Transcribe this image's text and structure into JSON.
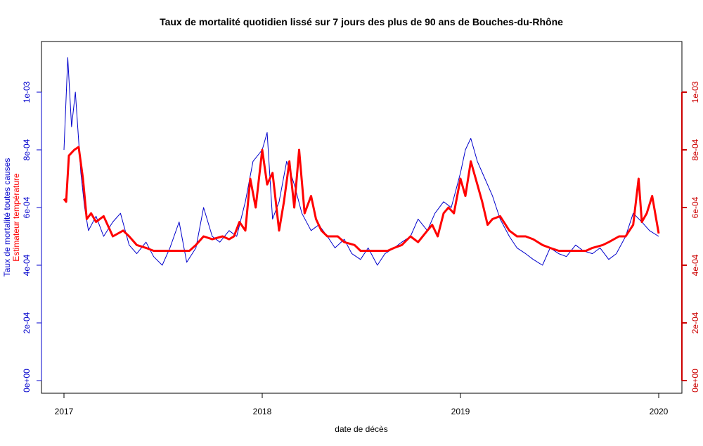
{
  "chart_data": {
    "type": "line",
    "title": "Taux de mortalité quotidien lissé sur 7 jours des plus de 90 ans de Bouches-du-Rhône",
    "xlabel": "date de décès",
    "ylabel_left_line1": "Taux de mortalité toutes causes",
    "ylabel_left_line2": "Estimateur température",
    "x_ticks": [
      "2017",
      "2018",
      "2019",
      "2020"
    ],
    "y_ticks_left": [
      "0e+00",
      "2e-04",
      "4e-04",
      "6e-04",
      "8e-04",
      "1e-03"
    ],
    "y_ticks_right": [
      "0e+00",
      "2e-04",
      "4e-04",
      "6e-04",
      "8e-04",
      "1e-03"
    ],
    "xlim": [
      "2017-01-01",
      "2020-01-01"
    ],
    "ylim": [
      0,
      0.00113
    ],
    "colors": {
      "mortality": "#0000cc",
      "temperature": "#ff0000",
      "axis_left": "#0000cc",
      "axis_right": "#cc0000"
    },
    "series": [
      {
        "key": "mortality",
        "x": [
          "2017-01-01",
          "2017-01-08",
          "2017-01-15",
          "2017-01-22",
          "2017-02-01",
          "2017-02-08",
          "2017-02-15",
          "2017-03-01",
          "2017-03-15",
          "2017-04-01",
          "2017-04-15",
          "2017-05-01",
          "2017-05-15",
          "2017-06-01",
          "2017-06-15",
          "2017-07-01",
          "2017-07-15",
          "2017-08-01",
          "2017-08-15",
          "2017-09-01",
          "2017-09-15",
          "2017-10-01",
          "2017-10-15",
          "2017-11-01",
          "2017-11-15",
          "2017-12-01",
          "2017-12-15",
          "2018-01-01",
          "2018-01-10",
          "2018-01-20",
          "2018-02-01",
          "2018-02-15",
          "2018-03-01",
          "2018-03-15",
          "2018-04-01",
          "2018-04-15",
          "2018-05-01",
          "2018-05-15",
          "2018-06-01",
          "2018-06-15",
          "2018-07-01",
          "2018-07-15",
          "2018-08-01",
          "2018-08-15",
          "2018-09-01",
          "2018-09-15",
          "2018-10-01",
          "2018-10-15",
          "2018-11-01",
          "2018-11-15",
          "2018-12-01",
          "2018-12-15",
          "2019-01-01",
          "2019-01-10",
          "2019-01-20",
          "2019-02-01",
          "2019-02-15",
          "2019-03-01",
          "2019-03-15",
          "2019-04-01",
          "2019-04-15",
          "2019-05-01",
          "2019-05-15",
          "2019-06-01",
          "2019-06-15",
          "2019-07-01",
          "2019-07-15",
          "2019-08-01",
          "2019-08-15",
          "2019-09-01",
          "2019-09-15",
          "2019-10-01",
          "2019-10-15",
          "2019-11-01",
          "2019-11-15",
          "2019-12-01",
          "2019-12-15",
          "2020-01-01"
        ],
        "values": [
          0.0008,
          0.00112,
          0.00088,
          0.001,
          0.00072,
          0.0006,
          0.00052,
          0.00057,
          0.0005,
          0.00055,
          0.00058,
          0.00047,
          0.00044,
          0.00048,
          0.00043,
          0.0004,
          0.00046,
          0.00055,
          0.00041,
          0.00046,
          0.0006,
          0.0005,
          0.00048,
          0.00052,
          0.0005,
          0.00062,
          0.00076,
          0.0008,
          0.00086,
          0.00056,
          0.00062,
          0.00076,
          0.00068,
          0.00058,
          0.00052,
          0.00054,
          0.0005,
          0.00046,
          0.00049,
          0.00044,
          0.00042,
          0.00046,
          0.0004,
          0.00044,
          0.00046,
          0.00048,
          0.0005,
          0.00056,
          0.00052,
          0.00058,
          0.00062,
          0.0006,
          0.00072,
          0.0008,
          0.00084,
          0.00076,
          0.0007,
          0.00064,
          0.00056,
          0.0005,
          0.00046,
          0.00044,
          0.00042,
          0.0004,
          0.00046,
          0.00044,
          0.00043,
          0.00047,
          0.00045,
          0.00044,
          0.00046,
          0.00042,
          0.00044,
          0.0005,
          0.00058,
          0.00055,
          0.00052,
          0.0005
        ]
      },
      {
        "key": "temperature",
        "x": [
          "2017-01-01",
          "2017-01-05",
          "2017-01-10",
          "2017-01-20",
          "2017-01-28",
          "2017-02-05",
          "2017-02-12",
          "2017-02-20",
          "2017-03-01",
          "2017-03-15",
          "2017-04-01",
          "2017-04-20",
          "2017-05-01",
          "2017-05-15",
          "2017-06-01",
          "2017-06-15",
          "2017-07-01",
          "2017-07-20",
          "2017-08-01",
          "2017-08-20",
          "2017-09-01",
          "2017-09-15",
          "2017-10-01",
          "2017-10-20",
          "2017-11-01",
          "2017-11-10",
          "2017-11-20",
          "2017-12-01",
          "2017-12-10",
          "2017-12-20",
          "2018-01-01",
          "2018-01-10",
          "2018-01-20",
          "2018-02-01",
          "2018-02-10",
          "2018-02-20",
          "2018-03-01",
          "2018-03-10",
          "2018-03-20",
          "2018-04-01",
          "2018-04-10",
          "2018-04-20",
          "2018-05-01",
          "2018-05-20",
          "2018-06-01",
          "2018-06-20",
          "2018-07-01",
          "2018-07-20",
          "2018-08-01",
          "2018-08-20",
          "2018-09-01",
          "2018-09-15",
          "2018-10-01",
          "2018-10-15",
          "2018-11-01",
          "2018-11-10",
          "2018-11-20",
          "2018-12-01",
          "2018-12-10",
          "2018-12-20",
          "2019-01-01",
          "2019-01-10",
          "2019-01-20",
          "2019-02-01",
          "2019-02-10",
          "2019-02-20",
          "2019-03-01",
          "2019-03-15",
          "2019-04-01",
          "2019-04-15",
          "2019-05-01",
          "2019-05-15",
          "2019-06-01",
          "2019-06-15",
          "2019-07-01",
          "2019-07-20",
          "2019-08-01",
          "2019-08-20",
          "2019-09-01",
          "2019-09-20",
          "2019-10-01",
          "2019-10-20",
          "2019-11-01",
          "2019-11-15",
          "2019-11-25",
          "2019-12-01",
          "2019-12-10",
          "2019-12-20",
          "2020-01-01"
        ],
        "values": [
          0.00063,
          0.00062,
          0.00078,
          0.0008,
          0.00081,
          0.0007,
          0.00056,
          0.00058,
          0.00055,
          0.00057,
          0.0005,
          0.00052,
          0.0005,
          0.00047,
          0.00046,
          0.00045,
          0.00045,
          0.00045,
          0.00045,
          0.00045,
          0.00047,
          0.0005,
          0.00049,
          0.0005,
          0.00049,
          0.0005,
          0.00055,
          0.00052,
          0.0007,
          0.0006,
          0.0008,
          0.00068,
          0.00072,
          0.00052,
          0.00062,
          0.00076,
          0.0006,
          0.0008,
          0.00058,
          0.00064,
          0.00056,
          0.00052,
          0.0005,
          0.0005,
          0.00048,
          0.00047,
          0.00045,
          0.00045,
          0.00045,
          0.00045,
          0.00046,
          0.00047,
          0.0005,
          0.00048,
          0.00052,
          0.00054,
          0.0005,
          0.00058,
          0.0006,
          0.00058,
          0.0007,
          0.00064,
          0.00076,
          0.00068,
          0.00062,
          0.00054,
          0.00056,
          0.00057,
          0.00052,
          0.0005,
          0.0005,
          0.00049,
          0.00047,
          0.00046,
          0.00045,
          0.00045,
          0.00045,
          0.00045,
          0.00046,
          0.00047,
          0.00048,
          0.0005,
          0.0005,
          0.00054,
          0.0007,
          0.00055,
          0.00058,
          0.00064,
          0.00051
        ]
      }
    ]
  }
}
